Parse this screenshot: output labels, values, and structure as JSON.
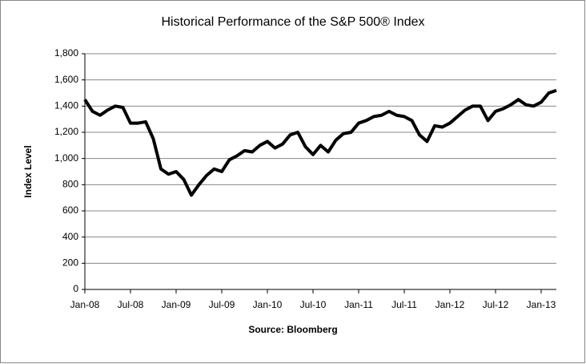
{
  "chart_data": {
    "type": "line",
    "title": "Historical Performance of the S&P 500® Index",
    "y_label": "Index Level",
    "x_label": "Source: Bloomberg",
    "categories": [
      "Jan-08",
      null,
      null,
      null,
      null,
      null,
      "Jul-08",
      null,
      null,
      null,
      null,
      null,
      "Jan-09",
      null,
      null,
      null,
      null,
      null,
      "Jul-09",
      null,
      null,
      null,
      null,
      null,
      "Jan-10",
      null,
      null,
      null,
      null,
      null,
      "Jul-10",
      null,
      null,
      null,
      null,
      null,
      "Jan-11",
      null,
      null,
      null,
      null,
      null,
      "Jul-11",
      null,
      null,
      null,
      null,
      null,
      "Jan-12",
      null,
      null,
      null,
      null,
      null,
      "Jul-12",
      null,
      null,
      null,
      null,
      null,
      "Jan-13",
      null,
      null
    ],
    "series": [
      {
        "name": "S&P 500",
        "color": "#000000",
        "values": [
          1450,
          1360,
          1330,
          1370,
          1400,
          1390,
          1270,
          1270,
          1280,
          1150,
          920,
          880,
          900,
          840,
          720,
          800,
          870,
          920,
          900,
          990,
          1020,
          1060,
          1050,
          1100,
          1130,
          1080,
          1110,
          1180,
          1200,
          1090,
          1030,
          1100,
          1050,
          1140,
          1190,
          1200,
          1270,
          1290,
          1320,
          1330,
          1360,
          1330,
          1320,
          1290,
          1180,
          1130,
          1250,
          1240,
          1270,
          1320,
          1370,
          1400,
          1400,
          1290,
          1360,
          1380,
          1410,
          1450,
          1410,
          1400,
          1430,
          1500,
          1520
        ]
      }
    ],
    "ylim": [
      0,
      1800
    ],
    "yticks": [
      0,
      200,
      400,
      600,
      800,
      {
        "value": 1000,
        "label": "1,000"
      },
      {
        "value": 1200,
        "label": "1,200"
      },
      {
        "value": 1400,
        "label": "1,400"
      },
      {
        "value": 1600,
        "label": "1,600"
      },
      {
        "value": 1800,
        "label": "1,800"
      }
    ],
    "grid": true
  }
}
